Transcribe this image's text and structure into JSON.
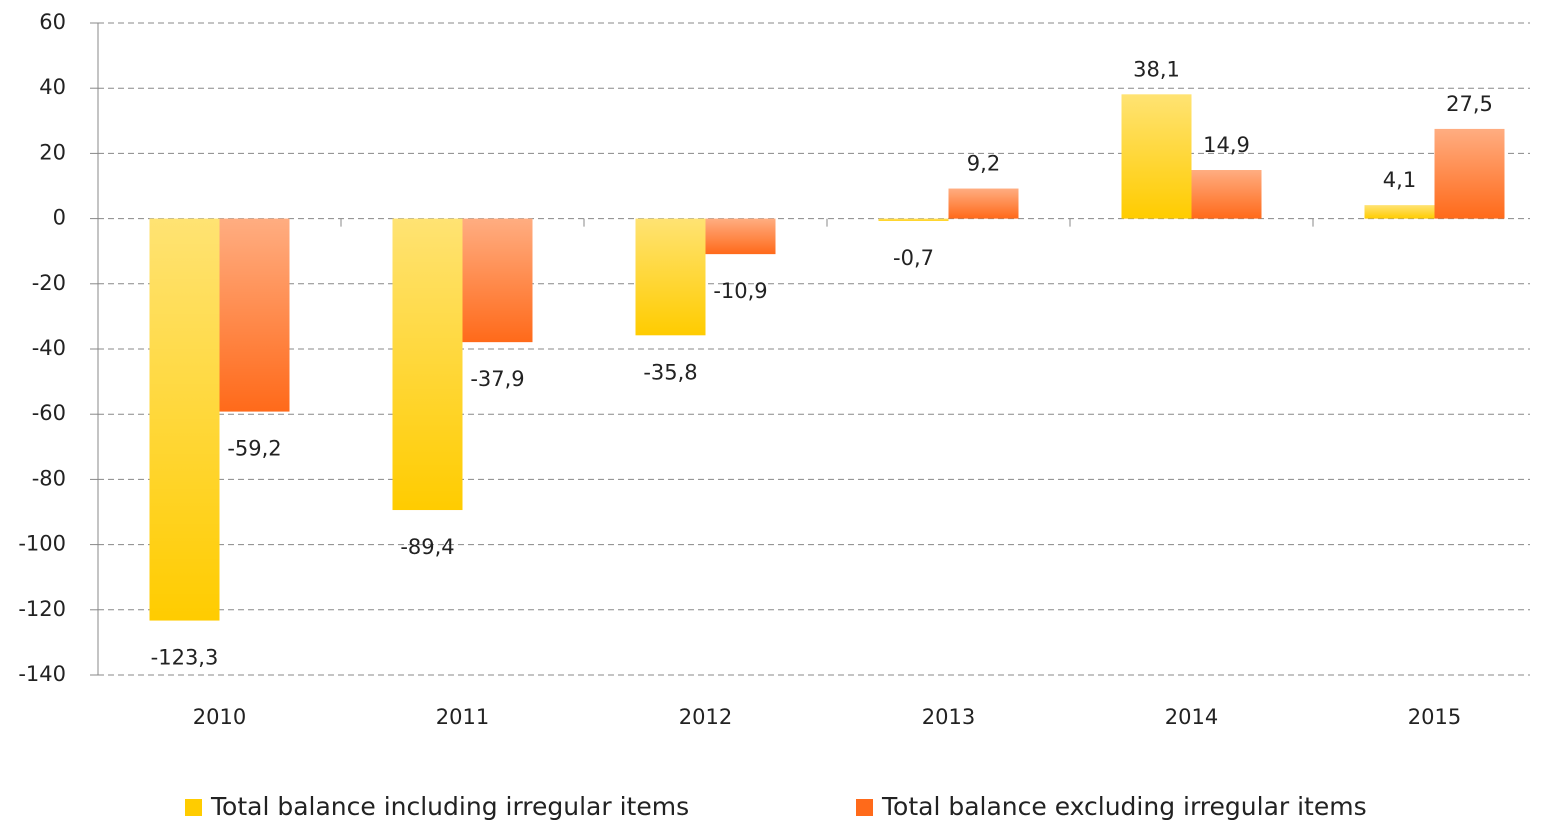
{
  "chart_data": {
    "type": "bar",
    "categories": [
      "2010",
      "2011",
      "2012",
      "2013",
      "2014",
      "2015"
    ],
    "series": [
      {
        "name": "Total balance including irregular items",
        "color": "#ffcc00",
        "values": [
          -123.3,
          -89.4,
          -35.8,
          -0.7,
          38.1,
          4.1
        ],
        "value_labels": [
          "-123,3",
          "-89,4",
          "-35,8",
          "-0,7",
          "38,1",
          "4,1"
        ]
      },
      {
        "name": "Total balance excluding irregular items",
        "color": "#ff6a1a",
        "values": [
          -59.2,
          -37.9,
          -10.9,
          9.2,
          14.9,
          27.5
        ],
        "value_labels": [
          "-59,2",
          "-37,9",
          "-10,9",
          "9,2",
          "14,9",
          "27,5"
        ]
      }
    ],
    "ylim": [
      -140,
      60
    ],
    "yticks": [
      -140,
      -120,
      -100,
      -80,
      -60,
      -40,
      -20,
      0,
      20,
      40,
      60
    ],
    "grid": true,
    "legend": "bottom"
  }
}
